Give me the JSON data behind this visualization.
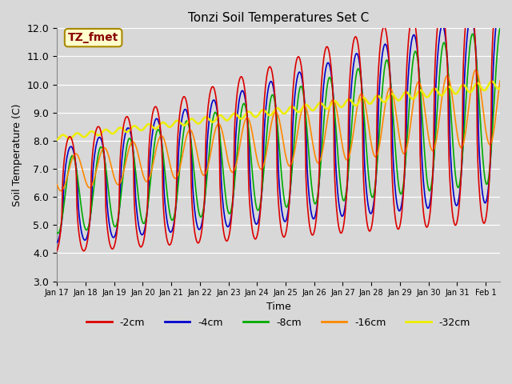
{
  "title": "Tonzi Soil Temperatures Set C",
  "xlabel": "Time",
  "ylabel": "Soil Temperature (C)",
  "annotation": "TZ_fmet",
  "ylim": [
    3.0,
    12.0
  ],
  "yticks": [
    3.0,
    4.0,
    5.0,
    6.0,
    7.0,
    8.0,
    9.0,
    10.0,
    11.0,
    12.0
  ],
  "colors": {
    "-2cm": "#dd0000",
    "-4cm": "#0000cc",
    "-8cm": "#00aa00",
    "-16cm": "#ff8800",
    "-32cm": "#eeee00"
  },
  "bg_color": "#d8d8d8",
  "grid_color": "#ffffff",
  "annotation_bg": "#ffffcc",
  "annotation_border": "#aa8800",
  "annotation_text_color": "#880000",
  "n_points": 800,
  "n_days": 15.5
}
